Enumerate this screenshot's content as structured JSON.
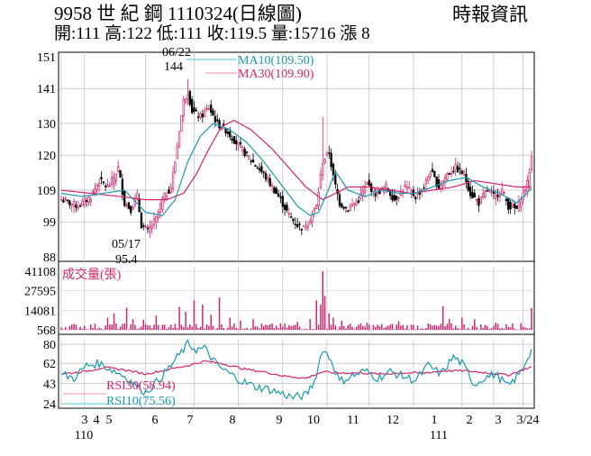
{
  "header": {
    "title": "9958 世 紀 鋼 1110324(日線圖)",
    "stats": "開:111 高:122 低:111 收:119.5 量:15716 漲 8",
    "source": "時報資訊"
  },
  "colors": {
    "up": "#d6246e",
    "down": "#000000",
    "ma10": "#1a9ab0",
    "ma30": "#d6246e",
    "volume": "#d6246e",
    "rsi10": "#1a9ab0",
    "rsi30": "#d6246e",
    "legend_ma10_line": "#4ec9d8",
    "legend_ma30_line": "#f08cb4"
  },
  "chart_data": [
    {
      "type": "candlestick",
      "panel": "price",
      "ylim": [
        88,
        151
      ],
      "yticks": [
        88,
        99,
        109,
        120,
        130,
        141,
        151
      ],
      "grid": true,
      "legend": [
        {
          "name": "MA10(109.50)",
          "key": "ma10"
        },
        {
          "name": "MA30(109.90)",
          "key": "ma30"
        }
      ],
      "annotations": [
        {
          "date_label": "06/22",
          "value_label": "144",
          "value": 144
        },
        {
          "date_label": "05/17",
          "value_label": "95.4",
          "value": 95.4
        }
      ],
      "last_close": 119.5,
      "keypoints_close": [
        [
          0,
          106
        ],
        [
          8,
          104
        ],
        [
          14,
          107
        ],
        [
          18,
          112
        ],
        [
          22,
          110
        ],
        [
          25,
          113
        ],
        [
          27,
          116
        ],
        [
          30,
          105
        ],
        [
          33,
          103
        ],
        [
          36,
          107
        ],
        [
          38,
          98
        ],
        [
          41,
          96
        ],
        [
          45,
          100
        ],
        [
          48,
          106
        ],
        [
          52,
          110
        ],
        [
          54,
          118
        ],
        [
          56,
          128
        ],
        [
          58,
          137
        ],
        [
          60,
          140
        ],
        [
          62,
          134
        ],
        [
          66,
          132
        ],
        [
          70,
          135
        ],
        [
          74,
          130
        ],
        [
          78,
          128
        ],
        [
          83,
          124
        ],
        [
          88,
          120
        ],
        [
          92,
          117
        ],
        [
          96,
          114
        ],
        [
          100,
          110
        ],
        [
          104,
          106
        ],
        [
          108,
          101
        ],
        [
          112,
          98
        ],
        [
          115,
          97
        ],
        [
          118,
          100
        ],
        [
          121,
          104
        ],
        [
          124,
          118
        ],
        [
          127,
          121
        ],
        [
          129,
          113
        ],
        [
          132,
          105
        ],
        [
          136,
          103
        ],
        [
          141,
          106
        ],
        [
          145,
          111
        ],
        [
          149,
          108
        ],
        [
          154,
          110
        ],
        [
          158,
          106
        ],
        [
          163,
          110
        ],
        [
          168,
          107
        ],
        [
          172,
          110
        ],
        [
          175,
          115
        ],
        [
          179,
          110
        ],
        [
          183,
          114
        ],
        [
          187,
          116
        ],
        [
          191,
          114
        ],
        [
          194,
          108
        ],
        [
          198,
          105
        ],
        [
          202,
          109
        ],
        [
          205,
          107
        ],
        [
          209,
          109
        ],
        [
          212,
          104
        ],
        [
          216,
          103
        ],
        [
          219,
          108
        ],
        [
          221,
          111
        ],
        [
          223,
          119.5
        ]
      ],
      "keypoints_ma10": [
        [
          0,
          108
        ],
        [
          10,
          107
        ],
        [
          20,
          108
        ],
        [
          30,
          109
        ],
        [
          40,
          102
        ],
        [
          48,
          101
        ],
        [
          54,
          106
        ],
        [
          60,
          118
        ],
        [
          66,
          126
        ],
        [
          72,
          130
        ],
        [
          80,
          128
        ],
        [
          88,
          124
        ],
        [
          96,
          118
        ],
        [
          104,
          111
        ],
        [
          112,
          104
        ],
        [
          118,
          101
        ],
        [
          122,
          102
        ],
        [
          126,
          108
        ],
        [
          130,
          115
        ],
        [
          136,
          109
        ],
        [
          144,
          107
        ],
        [
          152,
          109
        ],
        [
          160,
          108
        ],
        [
          168,
          108
        ],
        [
          176,
          110
        ],
        [
          184,
          112
        ],
        [
          192,
          113
        ],
        [
          200,
          110
        ],
        [
          208,
          108
        ],
        [
          216,
          105
        ],
        [
          223,
          109.5
        ]
      ],
      "keypoints_ma30": [
        [
          0,
          109
        ],
        [
          14,
          108
        ],
        [
          28,
          107
        ],
        [
          40,
          106
        ],
        [
          50,
          106
        ],
        [
          58,
          108
        ],
        [
          64,
          114
        ],
        [
          70,
          122
        ],
        [
          76,
          129
        ],
        [
          82,
          131
        ],
        [
          90,
          128
        ],
        [
          100,
          122
        ],
        [
          108,
          116
        ],
        [
          116,
          110
        ],
        [
          124,
          106
        ],
        [
          130,
          108
        ],
        [
          136,
          110
        ],
        [
          146,
          110
        ],
        [
          156,
          109
        ],
        [
          166,
          108
        ],
        [
          176,
          109
        ],
        [
          186,
          110
        ],
        [
          196,
          112
        ],
        [
          206,
          111
        ],
        [
          216,
          110
        ],
        [
          223,
          109.9
        ]
      ]
    },
    {
      "type": "bar",
      "panel": "volume",
      "ylabel": "成交量(張)",
      "ylim": [
        568,
        41108
      ],
      "yticks": [
        568,
        14081,
        27595,
        41108
      ],
      "last_value": 15716,
      "spikes": [
        [
          22,
          9000
        ],
        [
          25,
          12000
        ],
        [
          31,
          16000
        ],
        [
          34,
          8000
        ],
        [
          39,
          7500
        ],
        [
          45,
          10500
        ],
        [
          56,
          16500
        ],
        [
          59,
          13000
        ],
        [
          63,
          21000
        ],
        [
          67,
          18000
        ],
        [
          71,
          11000
        ],
        [
          75,
          23000
        ],
        [
          80,
          9000
        ],
        [
          85,
          7000
        ],
        [
          91,
          8000
        ],
        [
          104,
          5000
        ],
        [
          112,
          6000
        ],
        [
          118,
          8000
        ],
        [
          121,
          21000
        ],
        [
          123,
          18000
        ],
        [
          124,
          41108
        ],
        [
          125,
          24000
        ],
        [
          127,
          12000
        ],
        [
          129,
          9000
        ],
        [
          133,
          7000
        ],
        [
          145,
          5500
        ],
        [
          160,
          6500
        ],
        [
          175,
          4500
        ],
        [
          181,
          17000
        ],
        [
          184,
          8000
        ],
        [
          190,
          9000
        ],
        [
          196,
          8000
        ],
        [
          206,
          5500
        ],
        [
          214,
          5000
        ],
        [
          223,
          15716
        ]
      ]
    },
    {
      "type": "line",
      "panel": "rsi",
      "ylim": [
        24,
        80
      ],
      "yticks": [
        24,
        43,
        62,
        80
      ],
      "legend": [
        {
          "name": "RSI30(58.94)",
          "key": "rsi30"
        },
        {
          "name": "RSI10(75.56)",
          "key": "rsi10"
        }
      ],
      "x_tick_labels": [
        "3",
        "4",
        "5",
        "6",
        "7",
        "8",
        "9",
        "10",
        "11",
        "12",
        "1",
        "2",
        "3",
        "3/24"
      ],
      "x_year_labels": [
        "110",
        "111"
      ],
      "keypoints_rsi10": [
        [
          0,
          52
        ],
        [
          6,
          48
        ],
        [
          12,
          60
        ],
        [
          18,
          62
        ],
        [
          24,
          56
        ],
        [
          30,
          50
        ],
        [
          36,
          40
        ],
        [
          40,
          35
        ],
        [
          44,
          42
        ],
        [
          50,
          55
        ],
        [
          56,
          70
        ],
        [
          60,
          80
        ],
        [
          64,
          75
        ],
        [
          68,
          76
        ],
        [
          74,
          60
        ],
        [
          80,
          52
        ],
        [
          86,
          45
        ],
        [
          92,
          40
        ],
        [
          98,
          38
        ],
        [
          104,
          34
        ],
        [
          110,
          30
        ],
        [
          116,
          32
        ],
        [
          120,
          45
        ],
        [
          124,
          76
        ],
        [
          128,
          65
        ],
        [
          132,
          45
        ],
        [
          138,
          50
        ],
        [
          144,
          55
        ],
        [
          150,
          48
        ],
        [
          156,
          54
        ],
        [
          162,
          50
        ],
        [
          168,
          46
        ],
        [
          174,
          60
        ],
        [
          180,
          52
        ],
        [
          186,
          68
        ],
        [
          190,
          62
        ],
        [
          196,
          42
        ],
        [
          200,
          48
        ],
        [
          206,
          52
        ],
        [
          212,
          40
        ],
        [
          218,
          54
        ],
        [
          223,
          75.56
        ]
      ],
      "keypoints_rsi30": [
        [
          0,
          52
        ],
        [
          10,
          54
        ],
        [
          20,
          58
        ],
        [
          30,
          56
        ],
        [
          40,
          52
        ],
        [
          50,
          56
        ],
        [
          60,
          60
        ],
        [
          68,
          64
        ],
        [
          76,
          62
        ],
        [
          86,
          57
        ],
        [
          96,
          54
        ],
        [
          106,
          50
        ],
        [
          116,
          48
        ],
        [
          124,
          54
        ],
        [
          132,
          53
        ],
        [
          142,
          53
        ],
        [
          152,
          52
        ],
        [
          162,
          53
        ],
        [
          172,
          53
        ],
        [
          182,
          55
        ],
        [
          192,
          55
        ],
        [
          202,
          53
        ],
        [
          212,
          51
        ],
        [
          223,
          58.94
        ]
      ]
    }
  ]
}
